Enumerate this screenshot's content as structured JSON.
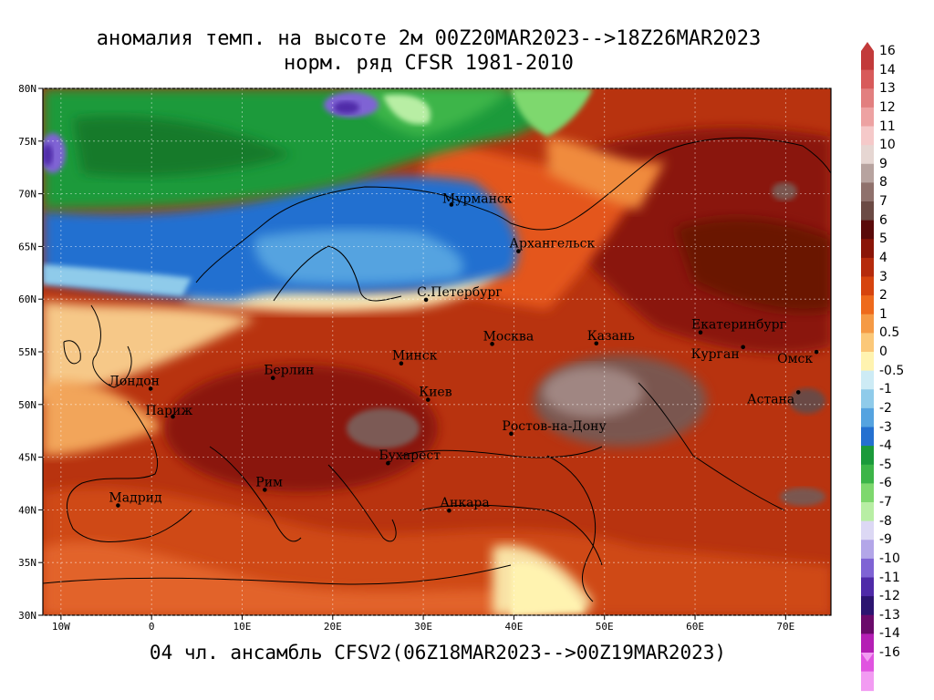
{
  "titles": {
    "line1": "аномалия темп. на высоте 2м 00Z20MAR2023-->18Z26MAR2023",
    "line2": "норм. ряд CFSR 1981-2010",
    "footer": "04 чл. ансамбль CFSV2(06Z18MAR2023-->00Z19MAR2023)"
  },
  "map": {
    "lon_range": [
      -12,
      75
    ],
    "lat_range": [
      30,
      80
    ],
    "lat_ticks": [
      "80N",
      "75N",
      "70N",
      "65N",
      "60N",
      "55N",
      "50N",
      "45N",
      "40N",
      "35N",
      "30N"
    ],
    "lon_ticks": [
      "10W",
      "0",
      "10E",
      "20E",
      "30E",
      "40E",
      "50E",
      "60E",
      "70E"
    ],
    "cities": [
      {
        "name": "Мурманск",
        "lon": 33.1,
        "lat": 68.97
      },
      {
        "name": "Архангельск",
        "lon": 40.5,
        "lat": 64.55
      },
      {
        "name": "С.Петербург",
        "lon": 30.3,
        "lat": 59.94
      },
      {
        "name": "Москва",
        "lon": 37.6,
        "lat": 55.75
      },
      {
        "name": "Казань",
        "lon": 49.1,
        "lat": 55.8
      },
      {
        "name": "Екатеринбург",
        "lon": 60.6,
        "lat": 56.84
      },
      {
        "name": "Курган",
        "lon": 65.3,
        "lat": 55.45
      },
      {
        "name": "Омск",
        "lon": 73.4,
        "lat": 54.99
      },
      {
        "name": "Астана",
        "lon": 71.4,
        "lat": 51.16
      },
      {
        "name": "Лондон",
        "lon": -0.1,
        "lat": 51.5
      },
      {
        "name": "Париж",
        "lon": 2.35,
        "lat": 48.85
      },
      {
        "name": "Берлин",
        "lon": 13.4,
        "lat": 52.52
      },
      {
        "name": "Минск",
        "lon": 27.56,
        "lat": 53.9
      },
      {
        "name": "Киев",
        "lon": 30.52,
        "lat": 50.45
      },
      {
        "name": "Ростов-на-Дону",
        "lon": 39.7,
        "lat": 47.23
      },
      {
        "name": "Бухарест",
        "lon": 26.1,
        "lat": 44.43
      },
      {
        "name": "Рим",
        "lon": 12.5,
        "lat": 41.9
      },
      {
        "name": "Мадрид",
        "lon": -3.7,
        "lat": 40.42
      },
      {
        "name": "Анкара",
        "lon": 32.85,
        "lat": 39.93
      }
    ]
  },
  "colorbar": {
    "labels": [
      "16",
      "14",
      "13",
      "12",
      "11",
      "10",
      "9",
      "8",
      "7",
      "6",
      "5",
      "4",
      "3",
      "2",
      "1",
      "0.5",
      "0",
      "-0.5",
      "-1",
      "-2",
      "-3",
      "-4",
      "-5",
      "-6",
      "-7",
      "-8",
      "-9",
      "-10",
      "-11",
      "-12",
      "-13",
      "-14",
      "-16"
    ],
    "colors": [
      "#c23a3a",
      "#d85a5a",
      "#e27f7f",
      "#eda2a2",
      "#f5c9c9",
      "#e6d6d2",
      "#b7a39f",
      "#8f716c",
      "#6b4a44",
      "#5a0a0a",
      "#8a1508",
      "#b52a0c",
      "#d6440e",
      "#ee6a1c",
      "#f59a45",
      "#fbc879",
      "#fff3b0",
      "#cdebf5",
      "#8fcbea",
      "#55a3e0",
      "#2470d0",
      "#1a9a3a",
      "#3cb548",
      "#7ed86e",
      "#b8eea4",
      "#dcd8f4",
      "#b3a6e8",
      "#7f63d4",
      "#4f2aa8",
      "#2c1470",
      "#6a0a6a",
      "#b41fb4",
      "#e054e0",
      "#f29bf2"
    ],
    "colors_note": "color swatches between labels, top (warm, +16) to bottom (cold, -16)"
  }
}
